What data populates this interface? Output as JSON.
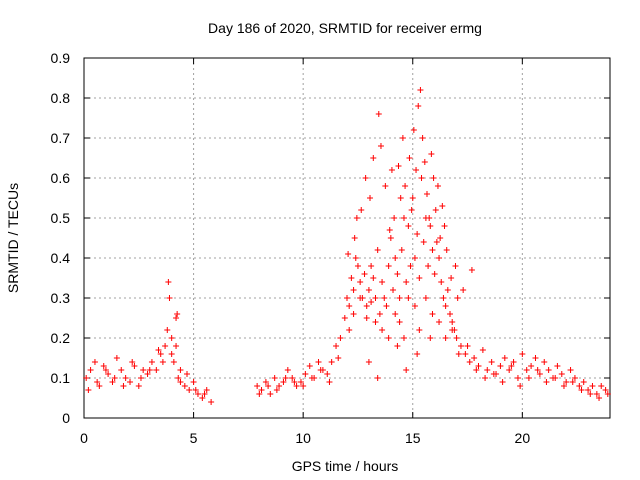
{
  "chart_data": {
    "type": "scatter",
    "title": "Day 186 of 2020, SRMTID for receiver ermg",
    "xlabel": "GPS time / hours",
    "ylabel": "SRMTID / TECUs",
    "xlim": [
      0,
      24
    ],
    "ylim": [
      0,
      0.9
    ],
    "xticks": [
      0,
      5,
      10,
      15,
      20
    ],
    "xtick_labels": [
      "0",
      "5",
      "10",
      "15",
      "20"
    ],
    "yticks": [
      0,
      0.1,
      0.2,
      0.3,
      0.4,
      0.5,
      0.6,
      0.7,
      0.8,
      0.9
    ],
    "ytick_labels": [
      "0",
      "0.1",
      "0.2",
      "0.3",
      "0.4",
      "0.5",
      "0.6",
      "0.7",
      "0.8",
      "0.9"
    ],
    "grid": true,
    "marker": "+",
    "color": "#ff0000",
    "series": [
      {
        "name": "SRMTID",
        "x": [
          0.1,
          0.3,
          0.5,
          0.7,
          0.9,
          1.1,
          1.3,
          1.5,
          1.7,
          1.9,
          2.1,
          2.3,
          2.5,
          2.7,
          2.9,
          3.1,
          3.3,
          3.5,
          3.7,
          3.8,
          3.9,
          4.0,
          4.1,
          4.2,
          4.3,
          4.4,
          4.6,
          4.8,
          5.0,
          5.2,
          5.4,
          5.6,
          5.8,
          7.9,
          8.1,
          8.3,
          8.5,
          8.7,
          8.9,
          9.1,
          9.3,
          9.5,
          9.7,
          9.9,
          10.1,
          10.3,
          10.5,
          10.7,
          10.9,
          11.1,
          11.3,
          11.5,
          11.7,
          11.9,
          12.0,
          12.1,
          12.2,
          12.3,
          12.4,
          12.5,
          12.6,
          12.7,
          12.8,
          12.9,
          13.0,
          13.1,
          13.2,
          13.3,
          13.4,
          13.5,
          13.6,
          13.7,
          13.8,
          13.9,
          14.0,
          14.1,
          14.2,
          14.3,
          14.4,
          14.5,
          14.6,
          14.7,
          14.8,
          14.9,
          15.0,
          15.1,
          15.2,
          15.3,
          15.4,
          15.5,
          15.6,
          15.7,
          15.8,
          15.9,
          16.0,
          16.1,
          16.2,
          16.3,
          16.4,
          16.5,
          16.6,
          16.7,
          16.8,
          16.9,
          17.0,
          17.2,
          17.4,
          17.6,
          17.8,
          18.0,
          18.2,
          18.4,
          18.6,
          18.8,
          19.0,
          19.2,
          19.4,
          19.6,
          19.8,
          20.0,
          20.2,
          20.4,
          20.6,
          20.8,
          21.0,
          21.2,
          21.4,
          21.6,
          21.8,
          22.0,
          22.2,
          22.4,
          22.6,
          22.8,
          23.0,
          23.2,
          23.4,
          23.6,
          23.8,
          0.2,
          0.6,
          1.0,
          1.4,
          1.8,
          2.2,
          2.6,
          3.0,
          3.4,
          3.6,
          4.0,
          4.2,
          4.4,
          4.7,
          5.1,
          5.5,
          8.0,
          8.4,
          8.8,
          9.2,
          9.6,
          10.0,
          10.4,
          10.8,
          11.2,
          11.6,
          12.1,
          12.3,
          12.6,
          12.9,
          13.1,
          13.3,
          13.6,
          13.9,
          14.2,
          14.4,
          14.6,
          14.8,
          15.1,
          15.3,
          15.6,
          15.9,
          16.2,
          16.5,
          16.8,
          17.1,
          17.5,
          17.9,
          18.3,
          18.7,
          19.1,
          19.5,
          19.9,
          20.3,
          20.7,
          21.1,
          21.5,
          21.9,
          22.3,
          22.7,
          23.1,
          23.5,
          23.9,
          3.85,
          4.25,
          12.05,
          12.35,
          12.45,
          12.65,
          12.85,
          13.05,
          13.2,
          13.45,
          13.55,
          13.75,
          13.95,
          14.05,
          14.15,
          14.35,
          14.45,
          14.55,
          14.65,
          14.85,
          14.95,
          15.05,
          15.15,
          15.25,
          15.35,
          15.45,
          15.55,
          15.65,
          15.75,
          15.85,
          15.95,
          16.05,
          16.15,
          16.25,
          16.35,
          16.45,
          16.55,
          16.75,
          16.95,
          17.05,
          17.3,
          17.7,
          14.3,
          14.7,
          15.2,
          15.8,
          13.0,
          13.4
        ],
        "y": [
          0.1,
          0.12,
          0.14,
          0.08,
          0.13,
          0.11,
          0.09,
          0.15,
          0.12,
          0.1,
          0.09,
          0.13,
          0.08,
          0.12,
          0.11,
          0.14,
          0.12,
          0.16,
          0.18,
          0.22,
          0.3,
          0.2,
          0.14,
          0.18,
          0.1,
          0.09,
          0.08,
          0.07,
          0.09,
          0.06,
          0.05,
          0.07,
          0.04,
          0.08,
          0.07,
          0.09,
          0.06,
          0.1,
          0.08,
          0.09,
          0.12,
          0.1,
          0.08,
          0.09,
          0.11,
          0.13,
          0.1,
          0.14,
          0.12,
          0.11,
          0.14,
          0.18,
          0.2,
          0.25,
          0.3,
          0.28,
          0.35,
          0.32,
          0.4,
          0.38,
          0.34,
          0.3,
          0.36,
          0.28,
          0.32,
          0.38,
          0.35,
          0.3,
          0.42,
          0.26,
          0.34,
          0.3,
          0.28,
          0.38,
          0.45,
          0.32,
          0.4,
          0.36,
          0.3,
          0.42,
          0.5,
          0.34,
          0.48,
          0.38,
          0.55,
          0.4,
          0.46,
          0.35,
          0.6,
          0.44,
          0.5,
          0.38,
          0.48,
          0.42,
          0.36,
          0.44,
          0.4,
          0.34,
          0.3,
          0.28,
          0.32,
          0.26,
          0.24,
          0.22,
          0.2,
          0.18,
          0.16,
          0.14,
          0.15,
          0.13,
          0.17,
          0.12,
          0.14,
          0.11,
          0.13,
          0.15,
          0.12,
          0.14,
          0.1,
          0.16,
          0.12,
          0.13,
          0.15,
          0.11,
          0.14,
          0.12,
          0.1,
          0.13,
          0.11,
          0.09,
          0.12,
          0.1,
          0.08,
          0.09,
          0.07,
          0.08,
          0.06,
          0.08,
          0.07,
          0.07,
          0.09,
          0.12,
          0.1,
          0.08,
          0.14,
          0.1,
          0.12,
          0.17,
          0.14,
          0.16,
          0.25,
          0.12,
          0.11,
          0.07,
          0.06,
          0.06,
          0.08,
          0.07,
          0.1,
          0.09,
          0.08,
          0.1,
          0.12,
          0.09,
          0.15,
          0.22,
          0.26,
          0.3,
          0.25,
          0.29,
          0.24,
          0.22,
          0.2,
          0.26,
          0.24,
          0.2,
          0.3,
          0.28,
          0.22,
          0.3,
          0.26,
          0.24,
          0.2,
          0.22,
          0.16,
          0.18,
          0.12,
          0.1,
          0.11,
          0.09,
          0.13,
          0.08,
          0.1,
          0.12,
          0.09,
          0.1,
          0.08,
          0.09,
          0.07,
          0.06,
          0.05,
          0.06,
          0.34,
          0.26,
          0.41,
          0.45,
          0.5,
          0.52,
          0.6,
          0.55,
          0.65,
          0.76,
          0.68,
          0.58,
          0.47,
          0.62,
          0.5,
          0.63,
          0.55,
          0.7,
          0.58,
          0.65,
          0.52,
          0.72,
          0.62,
          0.78,
          0.82,
          0.7,
          0.64,
          0.56,
          0.5,
          0.66,
          0.6,
          0.52,
          0.58,
          0.45,
          0.53,
          0.48,
          0.42,
          0.35,
          0.38,
          0.3,
          0.32,
          0.37,
          0.18,
          0.12,
          0.16,
          0.2,
          0.14,
          0.1
        ]
      }
    ]
  }
}
